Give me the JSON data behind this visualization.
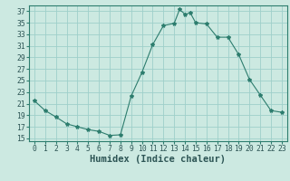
{
  "x": [
    0,
    1,
    2,
    3,
    4,
    5,
    6,
    7,
    8,
    9,
    10,
    11,
    12,
    13,
    13.5,
    14,
    14.5,
    15,
    16,
    17,
    18,
    19,
    20,
    21,
    22,
    23
  ],
  "y": [
    21.5,
    19.8,
    18.7,
    17.5,
    17.0,
    16.5,
    16.2,
    15.5,
    15.6,
    22.3,
    26.4,
    31.2,
    34.5,
    34.9,
    37.3,
    36.5,
    36.7,
    35.0,
    34.8,
    32.5,
    32.5,
    29.5,
    25.2,
    22.5,
    19.8,
    19.5
  ],
  "line_color": "#2d7d6e",
  "marker": "*",
  "marker_size": 3,
  "bg_color": "#cce9e1",
  "grid_color": "#9ecfca",
  "xlabel": "Humidex (Indice chaleur)",
  "xlim": [
    -0.5,
    23.5
  ],
  "ylim": [
    14.5,
    38
  ],
  "yticks": [
    15,
    17,
    19,
    21,
    23,
    25,
    27,
    29,
    31,
    33,
    35,
    37
  ],
  "xticks": [
    0,
    1,
    2,
    3,
    4,
    5,
    6,
    7,
    8,
    9,
    10,
    11,
    12,
    13,
    14,
    15,
    16,
    17,
    18,
    19,
    20,
    21,
    22,
    23
  ],
  "tick_color": "#2d7d6e",
  "font_color": "#2d5555",
  "xlabel_fontsize": 7.5,
  "tick_fontsize": 5.8
}
